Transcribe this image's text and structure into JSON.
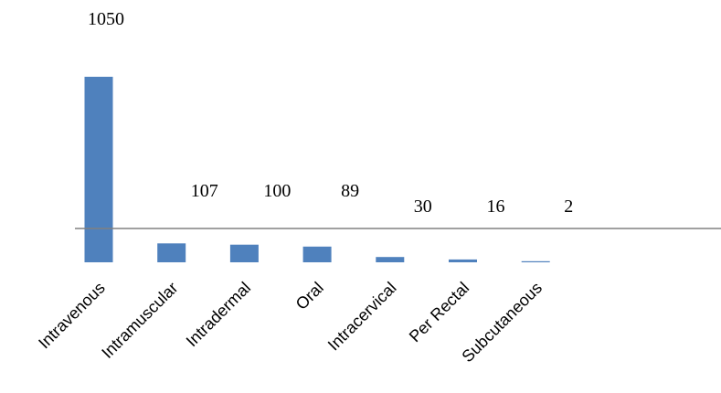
{
  "chart_data": {
    "type": "bar",
    "categories": [
      "Intravenous",
      "Intramuscular",
      "Intradermal",
      "Oral",
      "Intracervical",
      "Per Rectal",
      "Subcutaneous"
    ],
    "values": [
      1050,
      107,
      100,
      89,
      30,
      16,
      2
    ],
    "data_labels": [
      "1050",
      "107",
      "100",
      "89",
      "30",
      "16",
      "2"
    ],
    "title": "",
    "xlabel": "",
    "ylabel": "",
    "grid": false,
    "legend": "none",
    "colors": {
      "bar": "#4f81bd",
      "axis_line": "#808080"
    }
  }
}
